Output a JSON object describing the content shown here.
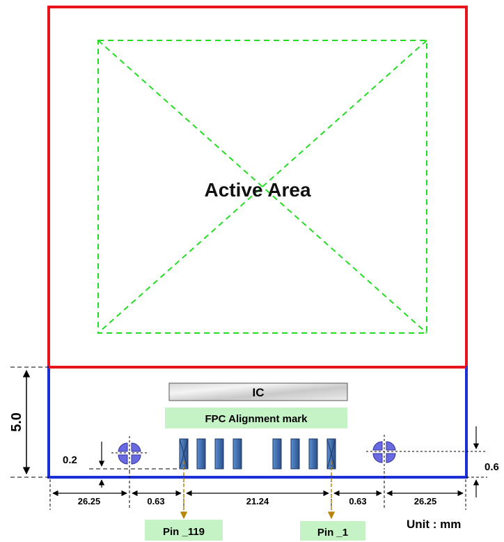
{
  "diagram": {
    "active_area_label": "Active Area",
    "ic_label": "IC",
    "fpc_mark_label": "FPC Alignment mark",
    "pins": {
      "left": "Pin _119",
      "right": "Pin _1"
    },
    "unit_label": "Unit : mm",
    "dimensions": {
      "height": "5.0",
      "mark_offset_left": "0.2",
      "mark_offset_right": "0.6",
      "edge_left": "26.25",
      "gap_left": "0.63",
      "pin_span": "21.24",
      "gap_right": "0.63",
      "edge_right": "26.25"
    },
    "colors": {
      "panel_border": "#e8141c",
      "fpc_border": "#1a2fd6",
      "active_area": "#22dd22",
      "pad_fill": "#3d6fb3",
      "mark_fill": "#6a6ae0",
      "callout_fill": "#c6f3c6",
      "arrow": "#b8860b"
    }
  }
}
